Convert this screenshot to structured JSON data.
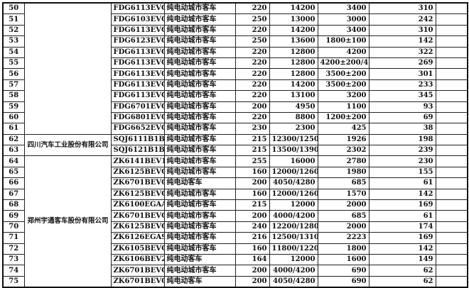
{
  "companies": [
    {
      "name": "",
      "rows": 12
    },
    {
      "name": "四川汽车工业股份有限公司",
      "rows": 2
    },
    {
      "name": "郑州宇通客车股份有限公司",
      "rows": 12
    }
  ],
  "rows": [
    {
      "no": "50",
      "model": "FDG6113EVG8",
      "type": "纯电动城市客车",
      "c5": "220",
      "c6": "14200",
      "c7": "3400",
      "c8": "310",
      "c9": ""
    },
    {
      "no": "51",
      "model": "FDG6103EVG",
      "type": "纯电动城市客车",
      "c5": "250",
      "c6": "13000",
      "c7": "3000",
      "c8": "242",
      "c9": ""
    },
    {
      "no": "52",
      "model": "FDG6113EVG",
      "type": "纯电动城市客车",
      "c5": "220",
      "c6": "14200",
      "c7": "3400",
      "c8": "310",
      "c9": ""
    },
    {
      "no": "53",
      "model": "FDG6123EVG",
      "type": "纯电动城市客车",
      "c5": "250",
      "c6": "13600",
      "c7": "1800±100",
      "c8": "142",
      "c9": ""
    },
    {
      "no": "54",
      "model": "FDG6113EVG4",
      "type": "纯电动城市客车",
      "c5": "220",
      "c6": "12800",
      "c7": "4200",
      "c8": "322",
      "c9": ""
    },
    {
      "no": "55",
      "model": "FDG6113EVG5",
      "type": "纯电动城市客车",
      "c5": "220",
      "c6": "12800",
      "c7": "4200±200/4500",
      "c8": "269",
      "c9": ""
    },
    {
      "no": "56",
      "model": "FDG6113EVG7",
      "type": "纯电动城市客车",
      "c5": "220",
      "c6": "12800",
      "c7": "3500±200",
      "c8": "301",
      "c9": ""
    },
    {
      "no": "57",
      "model": "FDG6113EVG1",
      "type": "纯电动城市客车",
      "c5": "220",
      "c6": "14200",
      "c7": "3500±200",
      "c8": "233",
      "c9": ""
    },
    {
      "no": "58",
      "model": "FDG6113EVG9",
      "type": "纯电动城市客车",
      "c5": "220",
      "c6": "13100",
      "c7": "3200",
      "c8": "345",
      "c9": ""
    },
    {
      "no": "59",
      "model": "FDG6701EVG1",
      "type": "纯电动城市客车",
      "c5": "200",
      "c6": "4950",
      "c7": "1100",
      "c8": "93",
      "c9": ""
    },
    {
      "no": "60",
      "model": "FDG6801EVG",
      "type": "纯电动城市客车",
      "c5": "220",
      "c6": "8800",
      "c7": "1200±200",
      "c8": "69",
      "c9": ""
    },
    {
      "no": "61",
      "model": "FDG6652EVG",
      "type": "纯电动城市客车",
      "c5": "230",
      "c6": "2300",
      "c7": "425",
      "c8": "38",
      "c9": ""
    },
    {
      "no": "62",
      "model": "SQJ6111B1BEV",
      "type": "纯电动城市客车",
      "c5": "215",
      "c6": "12300/12500",
      "c7": "1926",
      "c8": "198",
      "c9": ""
    },
    {
      "no": "63",
      "model": "SQJ6121B1BEV",
      "type": "纯电动城市客车",
      "c5": "215",
      "c6": "13500/13900",
      "c7": "2302",
      "c8": "239",
      "c9": ""
    },
    {
      "no": "64",
      "model": "ZK6141BEV1",
      "type": "纯电动城市客车",
      "c5": "255",
      "c6": "16000",
      "c7": "2780",
      "c8": "230",
      "c9": ""
    },
    {
      "no": "65",
      "model": "ZK6125BEVG2",
      "type": "纯电动城市客车",
      "c5": "160",
      "c6": "12000/12600",
      "c7": "1980",
      "c8": "155",
      "c9": ""
    },
    {
      "no": "66",
      "model": "ZK6701BEVQ3",
      "type": "纯电动客车",
      "c5": "200",
      "c6": "4050/4280",
      "c7": "685",
      "c8": "61",
      "c9": ""
    },
    {
      "no": "67",
      "model": "ZK6125BEVG1",
      "type": "纯电动城市客车",
      "c5": "160",
      "c6": "12000/12600",
      "c7": "1570",
      "c8": "142",
      "c9": ""
    },
    {
      "no": "68",
      "model": "ZK6100EGAA",
      "type": "纯电动城市客车",
      "c5": "215",
      "c6": "12000",
      "c7": "2000",
      "c8": "169",
      "c9": ""
    },
    {
      "no": "69",
      "model": "ZK6701BEVG3",
      "type": "纯电动城市客车",
      "c5": "200",
      "c6": "4000/4200",
      "c7": "685",
      "c8": "61",
      "c9": ""
    },
    {
      "no": "70",
      "model": "ZK6125BEVG4",
      "type": "纯电动城市客车",
      "c5": "240",
      "c6": "12200/12800",
      "c7": "2000",
      "c8": "174",
      "c9": ""
    },
    {
      "no": "71",
      "model": "ZK6126EGA9",
      "type": "纯电动城市客车",
      "c5": "216",
      "c6": "12500/13100",
      "c7": "2223",
      "c8": "169",
      "c9": ""
    },
    {
      "no": "72",
      "model": "ZK6105BEVG1",
      "type": "纯电动城市客车",
      "c5": "160",
      "c6": "11800/12200",
      "c7": "1800",
      "c8": "142",
      "c9": ""
    },
    {
      "no": "73",
      "model": "ZK6106BEV2",
      "type": "纯电动客车",
      "c5": "164",
      "c6": "12000",
      "c7": "1600",
      "c8": "149",
      "c9": ""
    },
    {
      "no": "74",
      "model": "ZK6701BEVG4",
      "type": "纯电动城市客车",
      "c5": "200",
      "c6": "4000/4200",
      "c7": "690",
      "c8": "62",
      "c9": ""
    },
    {
      "no": "75",
      "model": "ZK6701BEVQ2",
      "type": "纯电动客车",
      "c5": "200",
      "c6": "4050/4280",
      "c7": "690",
      "c8": "62",
      "c9": ""
    }
  ]
}
